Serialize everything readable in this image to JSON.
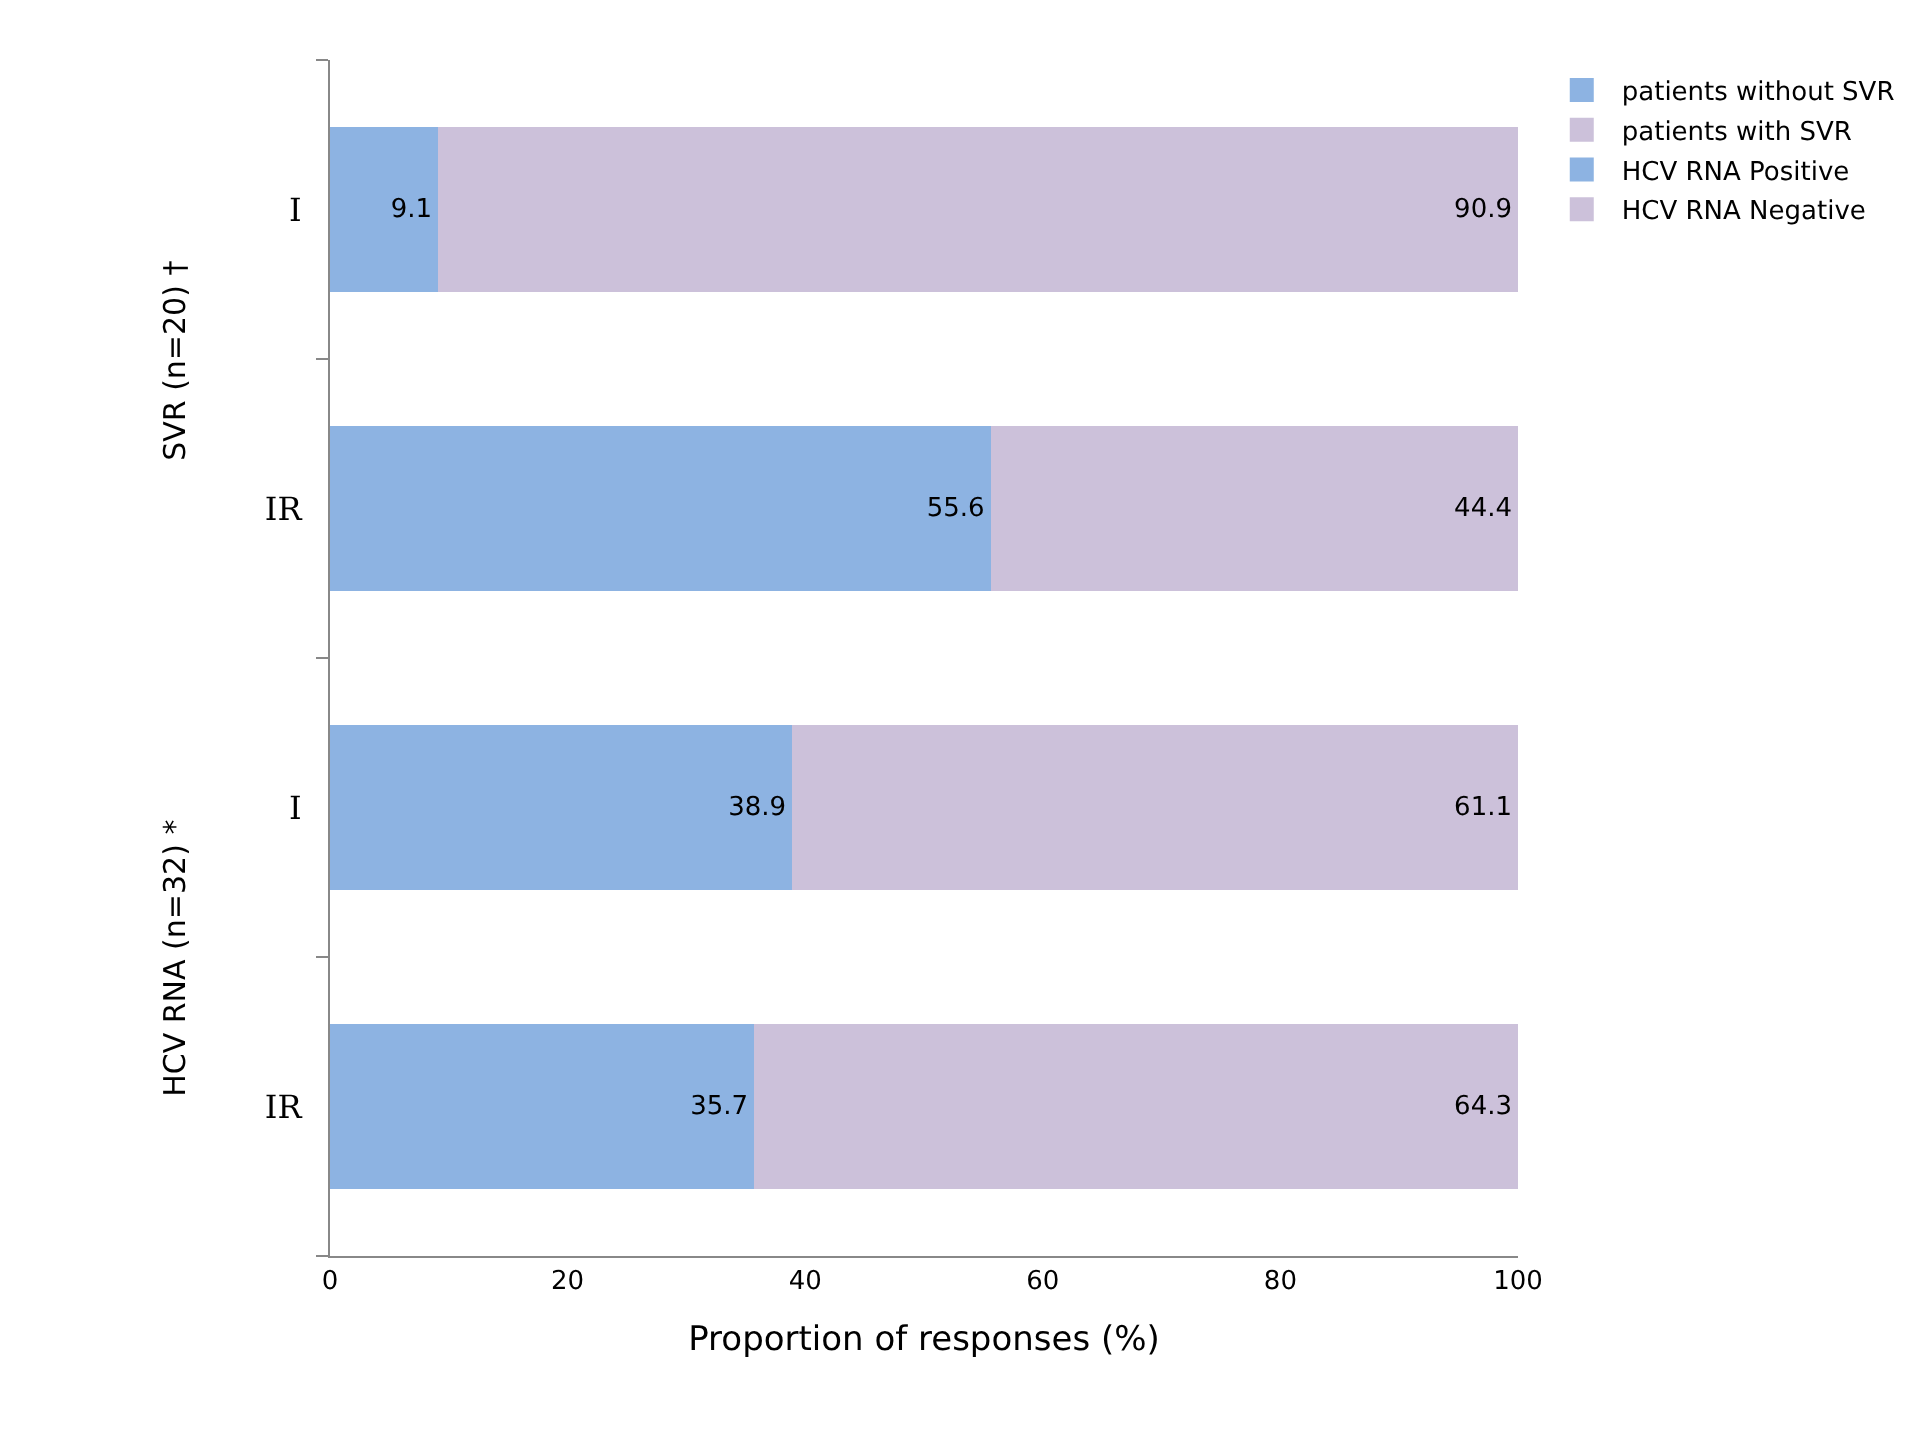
{
  "chart_data": {
    "type": "bar",
    "orientation": "horizontal",
    "stacked": true,
    "data_labels": true,
    "categories": [
      "I",
      "IR",
      "I",
      "IR"
    ],
    "series": [
      {
        "name": "patients without SVR",
        "color": "#8db3e2",
        "values": [
          9.1,
          55.6,
          null,
          null
        ]
      },
      {
        "name": "patients with SVR",
        "color": "#ccc1da",
        "values": [
          90.9,
          44.4,
          null,
          null
        ]
      },
      {
        "name": "HCV RNA Positive",
        "color": "#8db3e2",
        "values": [
          null,
          null,
          38.9,
          35.7
        ]
      },
      {
        "name": "HCV RNA Negative",
        "color": "#ccc1da",
        "values": [
          null,
          null,
          61.1,
          64.3
        ]
      }
    ],
    "xlim": [
      0,
      100
    ],
    "xticks": [
      0,
      20,
      40,
      60,
      80,
      100
    ],
    "xlabel": "Proportion of responses (%)",
    "annotations": [
      "SVR (n=20) †",
      "HCV RNA (n=32) *"
    ],
    "legend": "right"
  }
}
